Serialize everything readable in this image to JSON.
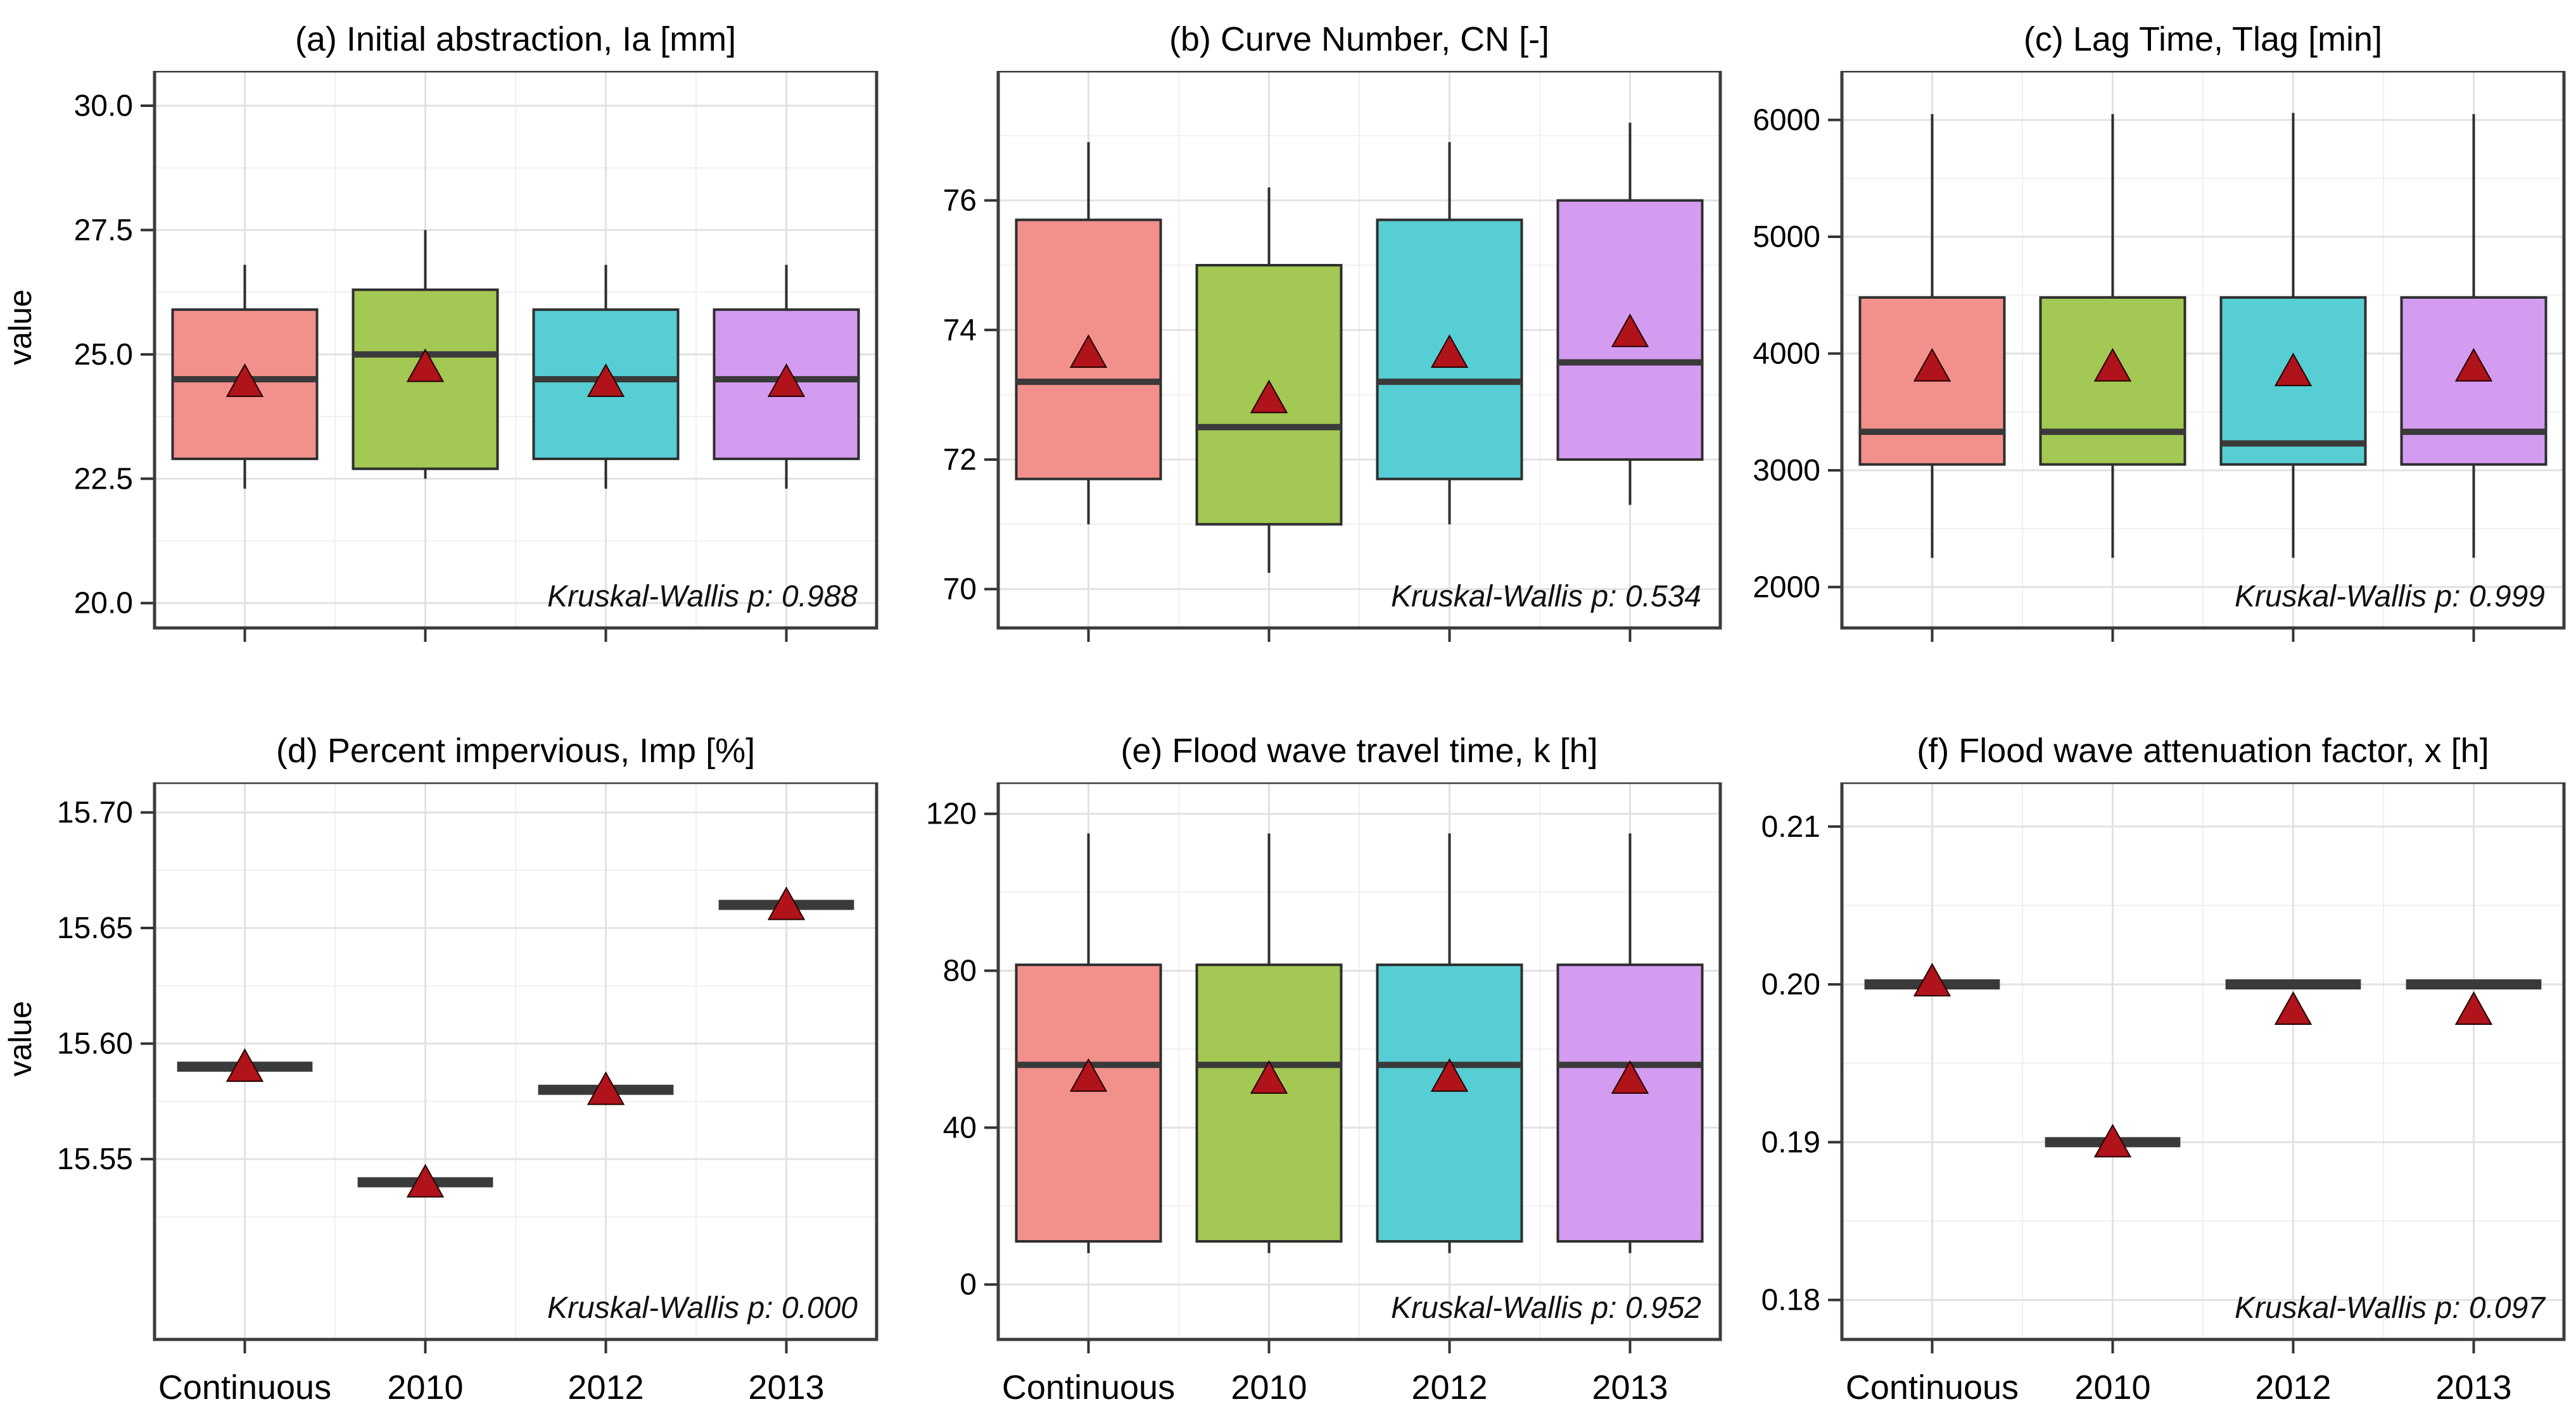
{
  "figure": {
    "y_axis_label": "value"
  },
  "categories": [
    "Continuous",
    "2010",
    "2012",
    "2013"
  ],
  "colors": {
    "fills": [
      "#F2918C",
      "#A3C853",
      "#57CED4",
      "#D49CF0"
    ],
    "box_border": "#2E2E2E",
    "median": "#3A3A3A",
    "mean_triangle": "#B0131A",
    "mean_triangle_edge": "#220000",
    "grid_major": "#E2E2E2",
    "grid_minor": "#F0F0F0",
    "panel_border": "#3C3C3C",
    "tick": "#333333",
    "text": "#000000",
    "background": "#FFFFFF"
  },
  "chart_data": [
    {
      "id": "a",
      "type": "boxplot",
      "title": "(a) Initial abstraction, Ia [mm]",
      "annotation": "Kruskal-Wallis p: 0.988",
      "flat": false,
      "x_axis_labels_shown": false,
      "ylim": [
        19.5,
        30.7
      ],
      "yticks": [
        20.0,
        22.5,
        25.0,
        27.5,
        30.0
      ],
      "ytick_labels": [
        "20.0",
        "22.5",
        "25.0",
        "27.5",
        "30.0"
      ],
      "boxes": [
        {
          "group": "Continuous",
          "whisker_low": 22.3,
          "q1": 22.9,
          "median": 24.5,
          "q3": 25.9,
          "whisker_high": 26.8,
          "mean": 24.45
        },
        {
          "group": "2010",
          "whisker_low": 22.5,
          "q1": 22.7,
          "median": 25.0,
          "q3": 26.3,
          "whisker_high": 27.5,
          "mean": 24.75
        },
        {
          "group": "2012",
          "whisker_low": 22.3,
          "q1": 22.9,
          "median": 24.5,
          "q3": 25.9,
          "whisker_high": 26.8,
          "mean": 24.45
        },
        {
          "group": "2013",
          "whisker_low": 22.3,
          "q1": 22.9,
          "median": 24.5,
          "q3": 25.9,
          "whisker_high": 26.8,
          "mean": 24.45
        }
      ]
    },
    {
      "id": "b",
      "type": "boxplot",
      "title": "(b) Curve Number, CN [-]",
      "annotation": "Kruskal-Wallis p: 0.534",
      "flat": false,
      "x_axis_labels_shown": false,
      "ylim": [
        69.4,
        78.0
      ],
      "yticks": [
        70,
        72,
        74,
        76
      ],
      "ytick_labels": [
        "70",
        "72",
        "74",
        "76"
      ],
      "boxes": [
        {
          "group": "Continuous",
          "whisker_low": 71.0,
          "q1": 71.7,
          "median": 73.2,
          "q3": 75.7,
          "whisker_high": 76.9,
          "mean": 73.65
        },
        {
          "group": "2010",
          "whisker_low": 70.25,
          "q1": 71.0,
          "median": 72.5,
          "q3": 75.0,
          "whisker_high": 76.2,
          "mean": 72.95
        },
        {
          "group": "2012",
          "whisker_low": 71.0,
          "q1": 71.7,
          "median": 73.2,
          "q3": 75.7,
          "whisker_high": 76.9,
          "mean": 73.65
        },
        {
          "group": "2013",
          "whisker_low": 71.3,
          "q1": 72.0,
          "median": 73.5,
          "q3": 76.0,
          "whisker_high": 77.2,
          "mean": 73.97
        }
      ]
    },
    {
      "id": "c",
      "type": "boxplot",
      "title": "(c) Lag Time, Tlag [min]",
      "annotation": "Kruskal-Wallis p: 0.999",
      "flat": false,
      "x_axis_labels_shown": false,
      "ylim": [
        1650,
        6420
      ],
      "yticks": [
        2000,
        3000,
        4000,
        5000,
        6000
      ],
      "ytick_labels": [
        "2000",
        "3000",
        "4000",
        "5000",
        "6000"
      ],
      "boxes": [
        {
          "group": "Continuous",
          "whisker_low": 2250,
          "q1": 3050,
          "median": 3330,
          "q3": 4480,
          "whisker_high": 6050,
          "mean": 3890
        },
        {
          "group": "2010",
          "whisker_low": 2250,
          "q1": 3050,
          "median": 3330,
          "q3": 4480,
          "whisker_high": 6050,
          "mean": 3890
        },
        {
          "group": "2012",
          "whisker_low": 2250,
          "q1": 3050,
          "median": 3230,
          "q3": 4480,
          "whisker_high": 6060,
          "mean": 3850
        },
        {
          "group": "2013",
          "whisker_low": 2250,
          "q1": 3050,
          "median": 3330,
          "q3": 4480,
          "whisker_high": 6050,
          "mean": 3890
        }
      ]
    },
    {
      "id": "d",
      "type": "boxplot",
      "title": "(d) Percent impervious, Imp [%]",
      "annotation": "Kruskal-Wallis p: 0.000",
      "flat": true,
      "x_axis_labels_shown": true,
      "ylim": [
        15.472,
        15.713
      ],
      "yticks": [
        15.55,
        15.6,
        15.65,
        15.7
      ],
      "ytick_labels": [
        "15.55",
        "15.60",
        "15.65",
        "15.70"
      ],
      "boxes": [
        {
          "group": "Continuous",
          "value": 15.59,
          "mean": 15.59
        },
        {
          "group": "2010",
          "value": 15.54,
          "mean": 15.54
        },
        {
          "group": "2012",
          "value": 15.58,
          "mean": 15.58
        },
        {
          "group": "2013",
          "value": 15.66,
          "mean": 15.66
        }
      ]
    },
    {
      "id": "e",
      "type": "boxplot",
      "title": "(e) Flood wave travel time, k [h]",
      "annotation": "Kruskal-Wallis p: 0.952",
      "flat": false,
      "x_axis_labels_shown": true,
      "ylim": [
        -14,
        128
      ],
      "yticks": [
        0,
        40,
        80,
        120
      ],
      "ytick_labels": [
        "0",
        "40",
        "80",
        "120"
      ],
      "boxes": [
        {
          "group": "Continuous",
          "whisker_low": 8,
          "q1": 11,
          "median": 56,
          "q3": 81.5,
          "whisker_high": 115,
          "mean": 53
        },
        {
          "group": "2010",
          "whisker_low": 8,
          "q1": 11,
          "median": 56,
          "q3": 81.5,
          "whisker_high": 115,
          "mean": 52.5
        },
        {
          "group": "2012",
          "whisker_low": 8,
          "q1": 11,
          "median": 56,
          "q3": 81.5,
          "whisker_high": 115,
          "mean": 53
        },
        {
          "group": "2013",
          "whisker_low": 8,
          "q1": 11,
          "median": 56,
          "q3": 81.5,
          "whisker_high": 115,
          "mean": 52.5
        }
      ]
    },
    {
      "id": "f",
      "type": "boxplot",
      "title": "(f) Flood wave attenuation factor, x [h]",
      "annotation": "Kruskal-Wallis p: 0.097",
      "flat": true,
      "x_axis_labels_shown": true,
      "ylim": [
        0.1775,
        0.2128
      ],
      "yticks": [
        0.18,
        0.19,
        0.2,
        0.21
      ],
      "ytick_labels": [
        "0.18",
        "0.19",
        "0.20",
        "0.21"
      ],
      "boxes": [
        {
          "group": "Continuous",
          "value": 0.2,
          "mean": 0.2002
        },
        {
          "group": "2010",
          "value": 0.19,
          "mean": 0.19
        },
        {
          "group": "2012",
          "value": 0.2,
          "mean": 0.1984
        },
        {
          "group": "2013",
          "value": 0.2,
          "mean": 0.1984
        }
      ]
    }
  ]
}
